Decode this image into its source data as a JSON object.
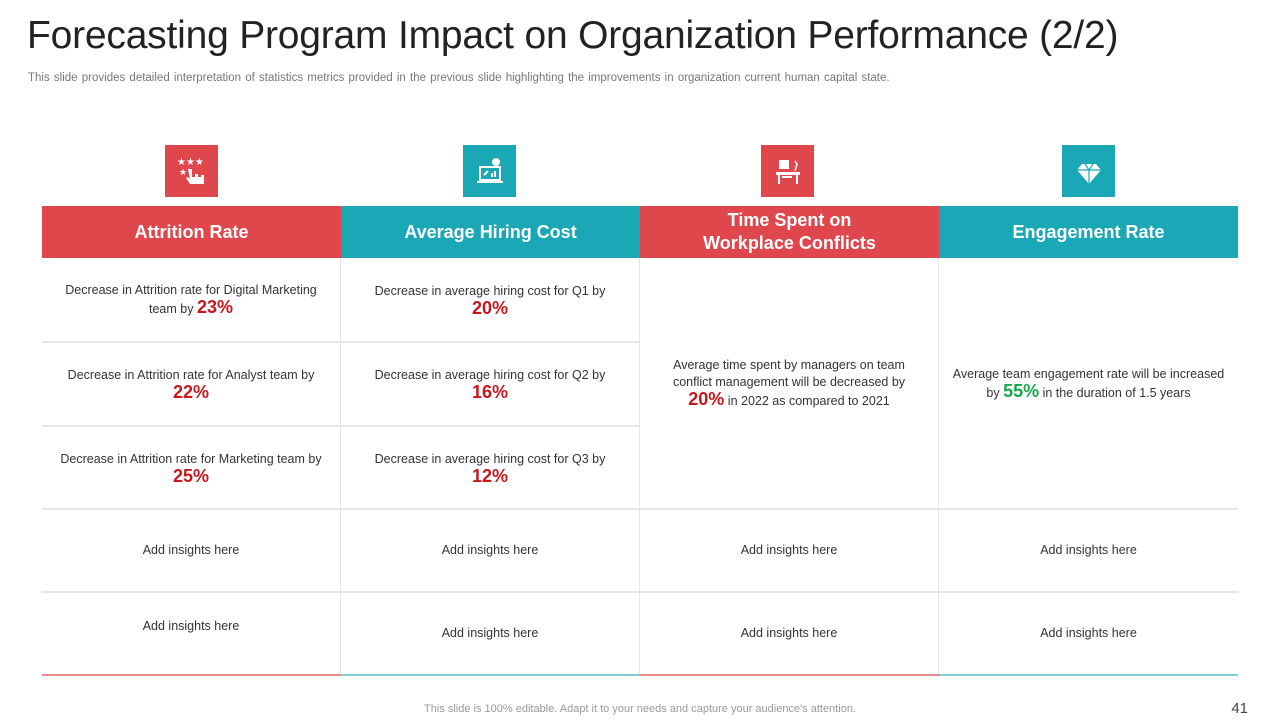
{
  "title": "Forecasting Program Impact on Organization Performance (2/2)",
  "subtitle": "This slide provides detailed interpretation of statistics metrics provided in the previous slide highlighting the improvements in organization current human capital state.",
  "columns": [
    {
      "header": "Attrition Rate",
      "icon": "rating-hand-icon"
    },
    {
      "header": "Average Hiring Cost",
      "icon": "laptop-cost-icon"
    },
    {
      "header_line1": "Time Spent on",
      "header_line2": "Workplace Conflicts",
      "icon": "office-desk-icon"
    },
    {
      "header": "Engagement Rate",
      "icon": "diamond-icon"
    }
  ],
  "attrition": [
    {
      "text": "Decrease in Attrition rate for Digital Marketing team by",
      "value": "23%"
    },
    {
      "text": "Decrease in Attrition rate for Analyst team by",
      "value": "22%"
    },
    {
      "text": "Decrease in Attrition rate for Marketing team by",
      "value": "25%"
    }
  ],
  "hiring": [
    {
      "text": "Decrease in average hiring cost for Q1 by",
      "value": "20%"
    },
    {
      "text": "Decrease in average hiring cost for Q2 by",
      "value": "16%"
    },
    {
      "text": "Decrease in average hiring cost for Q3 by",
      "value": "12%"
    }
  ],
  "conflicts": {
    "text": "Average time spent by managers on team conflict management will be decreased by",
    "value": "20%",
    "suffix": "in 2022 as compared to 2021"
  },
  "engagement": {
    "text": "Average team engagement rate will be increased by",
    "value": "55%",
    "suffix": "in the duration of 1.5 years"
  },
  "placeholder": "Add insights here",
  "footer": "This slide is 100% editable. Adapt it to your needs and capture your audience's attention.",
  "page_number": "41",
  "colors": {
    "red": "#E0474C",
    "teal": "#1AA8B6"
  }
}
